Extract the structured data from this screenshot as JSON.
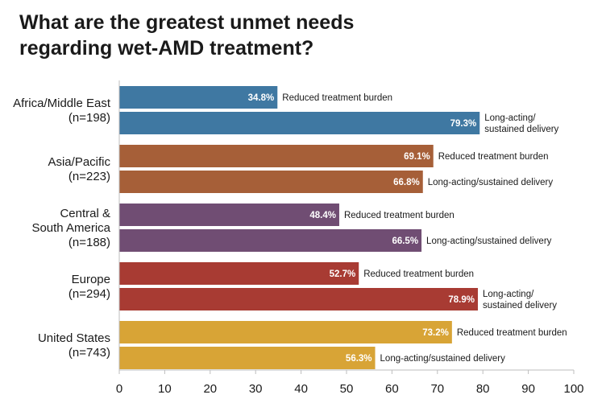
{
  "chart_data": {
    "type": "bar",
    "orientation": "horizontal",
    "title": "What are the greatest unmet needs regarding wet-AMD treatment?",
    "title_lines": [
      "What are the greatest unmet needs",
      "regarding wet-AMD treatment?"
    ],
    "xlim": [
      0,
      100
    ],
    "xticks": [
      0,
      10,
      20,
      30,
      40,
      50,
      60,
      70,
      80,
      90,
      100
    ],
    "grid": false,
    "groups": [
      {
        "label_lines": [
          "Africa/Middle East",
          "(n=198)"
        ],
        "color": "#3f78a2",
        "bars": [
          {
            "value": 34.8,
            "value_label": "34.8%",
            "label_lines": [
              "Reduced treatment burden"
            ]
          },
          {
            "value": 79.3,
            "value_label": "79.3%",
            "label_lines": [
              "Long-acting/",
              "sustained delivery"
            ]
          }
        ]
      },
      {
        "label_lines": [
          "Asia/Pacific",
          "(n=223)"
        ],
        "color": "#a65f38",
        "bars": [
          {
            "value": 69.1,
            "value_label": "69.1%",
            "label_lines": [
              "Reduced treatment burden"
            ]
          },
          {
            "value": 66.8,
            "value_label": "66.8%",
            "label_lines": [
              "Long-acting/sustained delivery"
            ]
          }
        ]
      },
      {
        "label_lines": [
          "Central &",
          "South America",
          "(n=188)"
        ],
        "color": "#704d73",
        "bars": [
          {
            "value": 48.4,
            "value_label": "48.4%",
            "label_lines": [
              "Reduced treatment burden"
            ]
          },
          {
            "value": 66.5,
            "value_label": "66.5%",
            "label_lines": [
              "Long-acting/sustained delivery"
            ]
          }
        ]
      },
      {
        "label_lines": [
          "Europe",
          "(n=294)"
        ],
        "color": "#a83b33",
        "bars": [
          {
            "value": 52.7,
            "value_label": "52.7%",
            "label_lines": [
              "Reduced treatment burden"
            ]
          },
          {
            "value": 78.9,
            "value_label": "78.9%",
            "label_lines": [
              "Long-acting/",
              "sustained delivery"
            ]
          }
        ]
      },
      {
        "label_lines": [
          "United States",
          "(n=743)"
        ],
        "color": "#d8a436",
        "bars": [
          {
            "value": 73.2,
            "value_label": "73.2%",
            "label_lines": [
              "Reduced treatment burden"
            ]
          },
          {
            "value": 56.3,
            "value_label": "56.3%",
            "label_lines": [
              "Long-acting/sustained delivery"
            ]
          }
        ]
      }
    ]
  }
}
